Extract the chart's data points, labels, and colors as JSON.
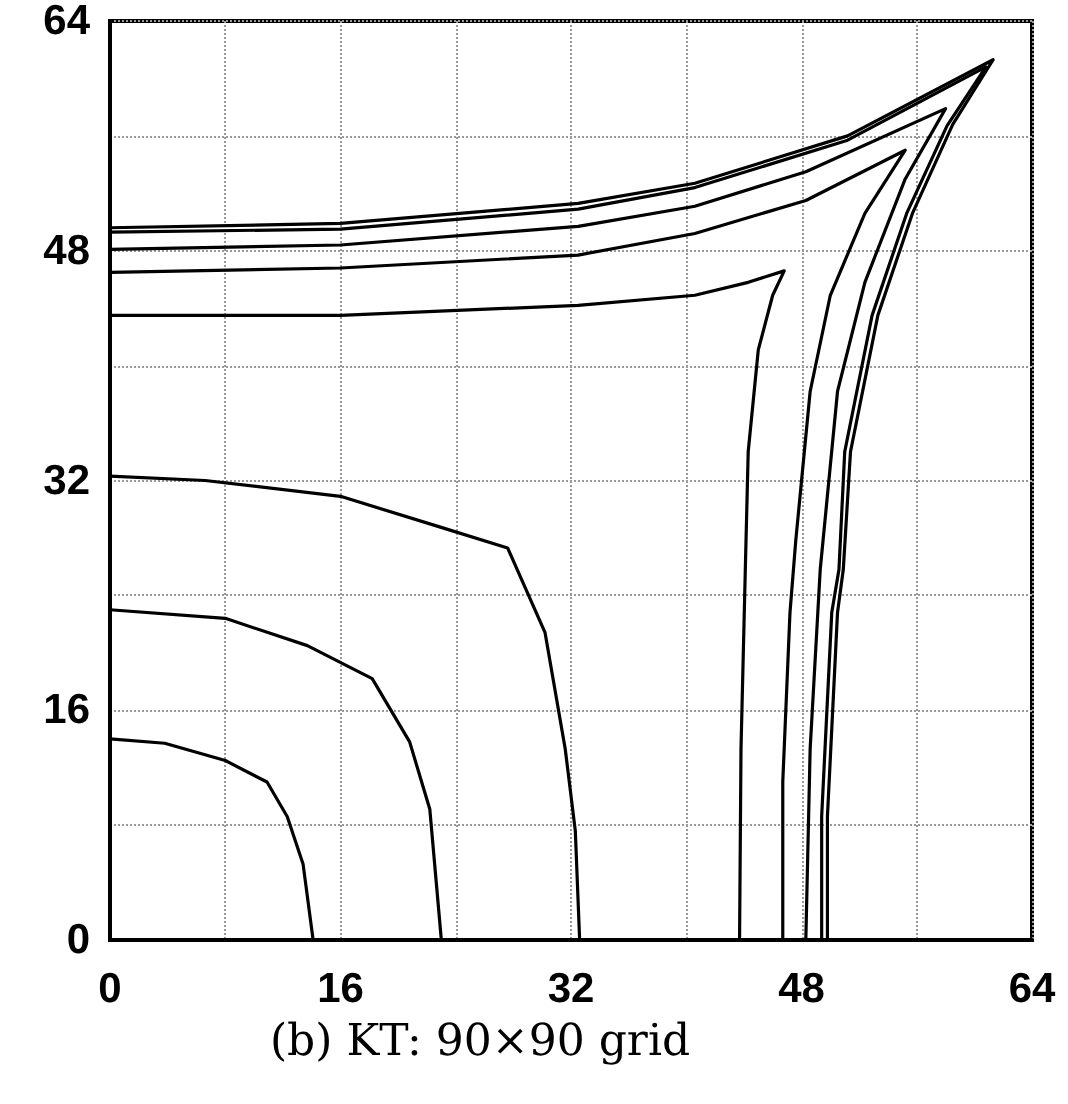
{
  "chart_data": {
    "type": "line",
    "title": "(b) KT: 90×90 grid",
    "xlim": [
      0,
      64
    ],
    "ylim": [
      0,
      64
    ],
    "xticks": [
      0,
      {
        "value": 8,
        "label": null
      },
      16,
      {
        "value": 24,
        "label": null
      },
      32,
      {
        "value": 40,
        "label": null
      },
      48,
      {
        "value": 56,
        "label": null
      },
      64
    ],
    "yticks": [
      0,
      {
        "value": 8,
        "label": null
      },
      16,
      {
        "value": 24,
        "label": null
      },
      32,
      {
        "value": 40,
        "label": null
      },
      48,
      {
        "value": 56,
        "label": null
      },
      64
    ],
    "grid": true,
    "marker": "none",
    "line_style": "solid",
    "series": [
      {
        "color": "#000000",
        "x": [
          0,
          3.8,
          8.0,
          10.9,
          12.3,
          13.4,
          14.1
        ],
        "values": [
          14.0,
          13.7,
          12.5,
          11.0,
          8.6,
          5.3,
          0
        ]
      },
      {
        "color": "#000000",
        "x": [
          0,
          8.0,
          13.7,
          18.2,
          20.8,
          22.2,
          23.0
        ],
        "values": [
          23.0,
          22.4,
          20.5,
          18.2,
          13.8,
          9.1,
          0
        ]
      },
      {
        "color": "#000000",
        "x": [
          0,
          6.6,
          16.0,
          23.1,
          27.6,
          30.2,
          31.6,
          32.3,
          32.6
        ],
        "values": [
          32.3,
          32.0,
          30.9,
          28.7,
          27.3,
          21.4,
          13.3,
          7.6,
          0
        ]
      },
      {
        "color": "#000000",
        "x": [
          0,
          16,
          32.5,
          40.6,
          44.3,
          46.8,
          46.0,
          45.0,
          44.3,
          44.1,
          43.8,
          43.7
        ],
        "values": [
          43.5,
          43.5,
          44.2,
          44.9,
          45.8,
          46.6,
          44.9,
          41.1,
          34.0,
          25.8,
          13.3,
          0
        ]
      },
      {
        "color": "#000000",
        "x": [
          0,
          16,
          32.5,
          40.6,
          48.3,
          55.2,
          52.4,
          50.0,
          48.6,
          47.6,
          47.2,
          46.7,
          46.7
        ],
        "values": [
          46.5,
          46.8,
          47.7,
          49.2,
          51.5,
          55.0,
          50.6,
          44.9,
          38.2,
          27.8,
          22.8,
          11.0,
          0
        ]
      },
      {
        "color": "#000000",
        "x": [
          0,
          16,
          32.5,
          40.6,
          48.3,
          58.0,
          55.2,
          52.4,
          50.5,
          49.3,
          48.6,
          48.3
        ],
        "values": [
          48.1,
          48.4,
          49.7,
          51.1,
          53.5,
          57.9,
          53.0,
          45.8,
          38.2,
          25.8,
          13.3,
          0
        ]
      },
      {
        "color": "#000000",
        "x": [
          0,
          16,
          32.5,
          40.6,
          51.2,
          61.3,
          58.5,
          55.7,
          53.3,
          51.4,
          50.9,
          50.5,
          49.8,
          49.8
        ],
        "values": [
          49.6,
          49.9,
          51.3,
          52.7,
          56.0,
          61.3,
          56.8,
          50.6,
          43.5,
          34.0,
          25.8,
          22.8,
          8.6,
          0
        ]
      },
      {
        "color": "#000000",
        "x": [
          0,
          16,
          32.5,
          40.6,
          51.2,
          60.8,
          58.1,
          55.3,
          52.9,
          51.0,
          50.6,
          50.1,
          49.4,
          49.4
        ],
        "values": [
          49.3,
          49.5,
          50.9,
          52.4,
          55.7,
          60.8,
          56.7,
          50.6,
          43.5,
          34.0,
          25.8,
          22.8,
          8.6,
          0
        ]
      }
    ]
  }
}
